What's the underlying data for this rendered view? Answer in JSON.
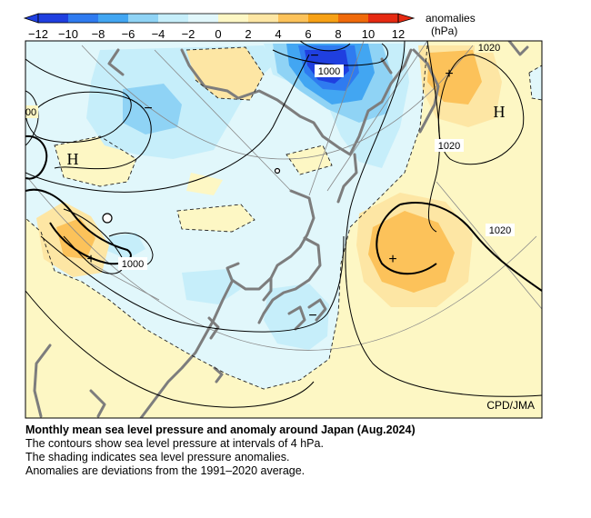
{
  "legend": {
    "title_line1": "anomalies",
    "title_line2": "(hPa)",
    "ticks": [
      "−12",
      "−10",
      "−8",
      "−6",
      "−4",
      "−2",
      "0",
      "2",
      "4",
      "6",
      "8",
      "10",
      "12"
    ],
    "colors": [
      "#1f3fe0",
      "#2f7bf0",
      "#42a6f2",
      "#8fd3f5",
      "#c6eefa",
      "#e1f7fb",
      "#fdf7c4",
      "#fde6a4",
      "#fcc25a",
      "#f7a115",
      "#f06a0a",
      "#e62a12"
    ]
  },
  "map": {
    "credit": "CPD/JMA",
    "contour_labels": {
      "top_left_partial": "00",
      "low_north": "1000",
      "top_right": "1020",
      "right_mid": "1020",
      "right_lower": "1020",
      "west": "1000"
    },
    "pressure_centers": {
      "high_west": "H",
      "high_east": "H"
    },
    "anomaly_signs": {
      "neg_north": "−",
      "neg_northwest": "−",
      "neg_japan": "−",
      "pos_west": "+",
      "pos_ne": "+",
      "pos_pacific": "+"
    }
  },
  "caption": {
    "title": "Monthly mean sea level pressure and anomaly around Japan (Aug.2024)",
    "line1": "The contours show sea level pressure at intervals of 4 hPa.",
    "line2": "The shading indicates sea level pressure anomalies.",
    "line3": "Anomalies are deviations from the 1991–2020 average."
  }
}
